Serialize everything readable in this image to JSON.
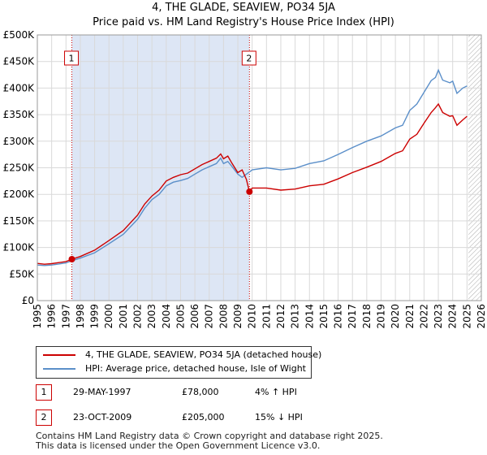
{
  "header": {
    "title_line1": "4, THE GLADE, SEAVIEW, PO34 5JA",
    "title_line2": "Price paid vs. HM Land Registry's House Price Index (HPI)"
  },
  "chart_data": {
    "type": "line",
    "title": "4, THE GLADE, SEAVIEW, PO34 5JA — Price paid vs. HM Land Registry's House Price Index (HPI)",
    "xlim": [
      1995,
      2026
    ],
    "ylim": [
      0,
      500000
    ],
    "x_ticks": [
      "1995",
      "1996",
      "1997",
      "1998",
      "1999",
      "2000",
      "2001",
      "2002",
      "2003",
      "2004",
      "2005",
      "2006",
      "2007",
      "2008",
      "2009",
      "2010",
      "2011",
      "2012",
      "2013",
      "2014",
      "2015",
      "2016",
      "2017",
      "2018",
      "2019",
      "2020",
      "2021",
      "2022",
      "2023",
      "2024",
      "2025",
      "2026"
    ],
    "y_ticks": [
      {
        "value": 0,
        "label": "£0"
      },
      {
        "value": 50000,
        "label": "£50K"
      },
      {
        "value": 100000,
        "label": "£100K"
      },
      {
        "value": 150000,
        "label": "£150K"
      },
      {
        "value": 200000,
        "label": "£200K"
      },
      {
        "value": 250000,
        "label": "£250K"
      },
      {
        "value": 300000,
        "label": "£300K"
      },
      {
        "value": 350000,
        "label": "£350K"
      },
      {
        "value": 400000,
        "label": "£400K"
      },
      {
        "value": 450000,
        "label": "£450K"
      },
      {
        "value": 500000,
        "label": "£500K"
      }
    ],
    "shaded_span": [
      1997.41,
      2009.81
    ],
    "forecast_from": 2025.1,
    "colors": {
      "property": "#cc0000",
      "hpi": "#5b8fc9",
      "shade": "#dde6f5"
    },
    "series": [
      {
        "name": "4, THE GLADE, SEAVIEW, PO34 5JA (detached house)",
        "color": "#cc0000",
        "points": [
          [
            1995.0,
            70000
          ],
          [
            1995.5,
            68500
          ],
          [
            1996.0,
            69500
          ],
          [
            1996.5,
            71500
          ],
          [
            1997.0,
            73500
          ],
          [
            1997.41,
            78000
          ],
          [
            1998.0,
            83000
          ],
          [
            1999.0,
            95000
          ],
          [
            2000.0,
            113000
          ],
          [
            2001.0,
            132000
          ],
          [
            2002.0,
            161000
          ],
          [
            2002.5,
            182000
          ],
          [
            2003.0,
            197000
          ],
          [
            2003.5,
            208000
          ],
          [
            2004.0,
            225000
          ],
          [
            2004.5,
            232000
          ],
          [
            2005.0,
            237000
          ],
          [
            2005.5,
            240000
          ],
          [
            2006.0,
            248000
          ],
          [
            2006.5,
            256000
          ],
          [
            2007.0,
            262000
          ],
          [
            2007.5,
            268000
          ],
          [
            2007.8,
            276000
          ],
          [
            2008.0,
            267000
          ],
          [
            2008.3,
            272000
          ],
          [
            2008.6,
            258000
          ],
          [
            2009.0,
            241000
          ],
          [
            2009.3,
            246000
          ],
          [
            2009.6,
            228000
          ],
          [
            2009.81,
            205000
          ],
          [
            2010.0,
            212000
          ],
          [
            2011.0,
            212000
          ],
          [
            2012.0,
            208000
          ],
          [
            2013.0,
            210000
          ],
          [
            2014.0,
            216000
          ],
          [
            2015.0,
            219000
          ],
          [
            2016.0,
            229000
          ],
          [
            2017.0,
            241000
          ],
          [
            2018.0,
            251000
          ],
          [
            2019.0,
            262000
          ],
          [
            2020.0,
            277000
          ],
          [
            2020.5,
            282000
          ],
          [
            2021.0,
            304000
          ],
          [
            2021.5,
            313000
          ],
          [
            2022.0,
            334000
          ],
          [
            2022.5,
            354000
          ],
          [
            2022.8,
            363000
          ],
          [
            2023.0,
            370000
          ],
          [
            2023.3,
            354000
          ],
          [
            2023.8,
            347000
          ],
          [
            2024.0,
            348000
          ],
          [
            2024.3,
            330000
          ],
          [
            2024.7,
            340000
          ],
          [
            2025.0,
            347000
          ]
        ]
      },
      {
        "name": "HPI: Average price, detached house, Isle of Wight",
        "color": "#5b8fc9",
        "points": [
          [
            1995.0,
            67000
          ],
          [
            1995.5,
            66000
          ],
          [
            1996.0,
            67000
          ],
          [
            1996.5,
            69000
          ],
          [
            1997.0,
            71000
          ],
          [
            1997.41,
            75000
          ],
          [
            1998.0,
            80000
          ],
          [
            1999.0,
            90000
          ],
          [
            2000.0,
            107000
          ],
          [
            2001.0,
            125000
          ],
          [
            2002.0,
            153000
          ],
          [
            2002.5,
            174000
          ],
          [
            2003.0,
            190000
          ],
          [
            2003.5,
            200000
          ],
          [
            2004.0,
            216000
          ],
          [
            2004.5,
            223000
          ],
          [
            2005.0,
            226000
          ],
          [
            2005.5,
            230000
          ],
          [
            2006.0,
            238000
          ],
          [
            2006.5,
            246000
          ],
          [
            2007.0,
            252000
          ],
          [
            2007.5,
            258000
          ],
          [
            2007.8,
            268000
          ],
          [
            2008.0,
            258000
          ],
          [
            2008.3,
            262000
          ],
          [
            2008.6,
            252000
          ],
          [
            2009.0,
            238000
          ],
          [
            2009.3,
            232000
          ],
          [
            2009.6,
            238000
          ],
          [
            2009.81,
            242000
          ],
          [
            2010.0,
            246000
          ],
          [
            2011.0,
            250000
          ],
          [
            2012.0,
            246000
          ],
          [
            2013.0,
            249000
          ],
          [
            2014.0,
            258000
          ],
          [
            2015.0,
            263000
          ],
          [
            2016.0,
            275000
          ],
          [
            2017.0,
            288000
          ],
          [
            2018.0,
            300000
          ],
          [
            2019.0,
            310000
          ],
          [
            2020.0,
            325000
          ],
          [
            2020.5,
            330000
          ],
          [
            2021.0,
            358000
          ],
          [
            2021.5,
            370000
          ],
          [
            2022.0,
            392000
          ],
          [
            2022.5,
            414000
          ],
          [
            2022.8,
            420000
          ],
          [
            2023.0,
            434000
          ],
          [
            2023.3,
            415000
          ],
          [
            2023.8,
            410000
          ],
          [
            2024.0,
            413000
          ],
          [
            2024.3,
            390000
          ],
          [
            2024.7,
            400000
          ],
          [
            2025.0,
            404000
          ]
        ]
      }
    ],
    "sales": [
      {
        "label": "1",
        "x": 1997.41,
        "y": 78000
      },
      {
        "label": "2",
        "x": 2009.81,
        "y": 205000
      }
    ]
  },
  "legend": {
    "property": "4, THE GLADE, SEAVIEW, PO34 5JA (detached house)",
    "hpi": "HPI: Average price, detached house, Isle of Wight"
  },
  "transactions": [
    {
      "num": "1",
      "date": "29-MAY-1997",
      "price": "£78,000",
      "hpi": "4% ↑ HPI"
    },
    {
      "num": "2",
      "date": "23-OCT-2009",
      "price": "£205,000",
      "hpi": "15% ↓ HPI"
    }
  ],
  "footer": {
    "line1": "Contains HM Land Registry data © Crown copyright and database right 2025.",
    "line2": "This data is licensed under the Open Government Licence v3.0."
  }
}
